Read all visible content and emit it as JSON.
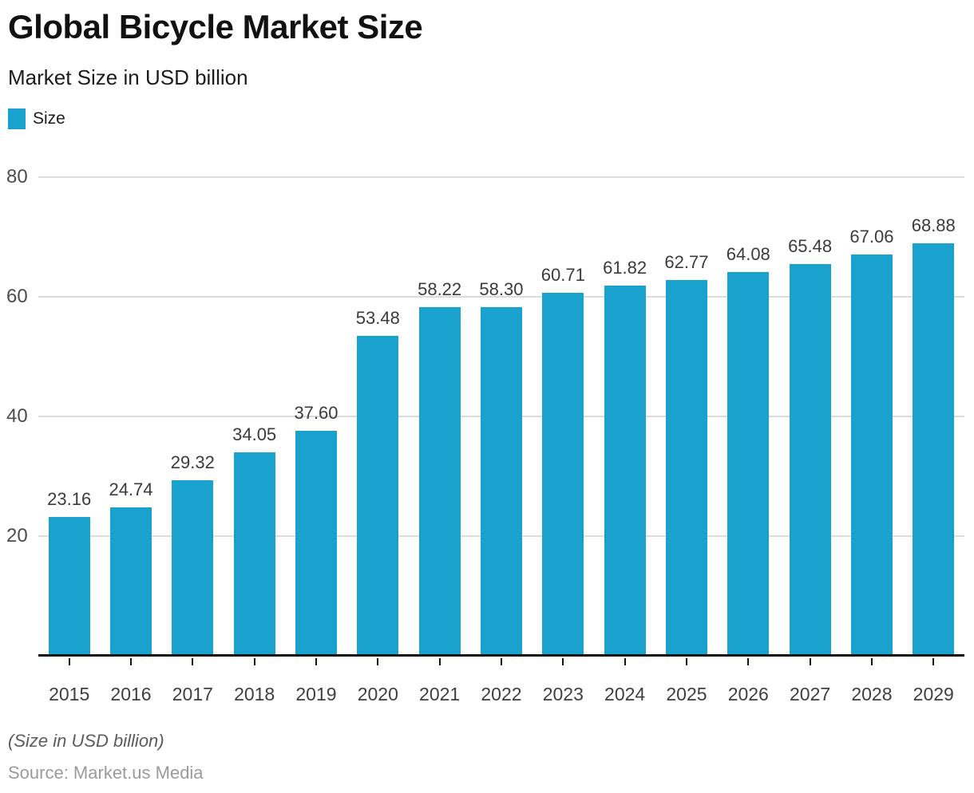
{
  "header": {
    "title": "Global Bicycle Market Size",
    "subtitle": "Market Size in USD billion"
  },
  "legend": {
    "label": "Size",
    "swatch_color": "#1AA2CE"
  },
  "footer": {
    "note": "(Size in USD billion)",
    "source": "Source: Market.us Media"
  },
  "colors": {
    "bar": "#1AA2CE",
    "gridline": "#dbdbdb",
    "axis": "#151515",
    "value_label": "#3b3b3b",
    "tick_label": "#4d4d4d"
  },
  "chart_data": {
    "type": "bar",
    "title": "Global Bicycle Market Size",
    "subtitle": "Market Size in USD billion",
    "xlabel": "",
    "ylabel": "Market Size in USD billion",
    "categories": [
      "2015",
      "2016",
      "2017",
      "2018",
      "2019",
      "2020",
      "2021",
      "2022",
      "2023",
      "2024",
      "2025",
      "2026",
      "2027",
      "2028",
      "2029"
    ],
    "values": [
      23.16,
      24.74,
      29.32,
      34.05,
      37.6,
      53.48,
      58.22,
      58.3,
      60.71,
      61.82,
      62.77,
      64.08,
      65.48,
      67.06,
      68.88
    ],
    "value_labels": [
      "23.16",
      "24.74",
      "29.32",
      "34.05",
      "37.60",
      "53.48",
      "58.22",
      "58.30",
      "60.71",
      "61.82",
      "62.77",
      "64.08",
      "65.48",
      "67.06",
      "68.88"
    ],
    "series_name": "Size",
    "ylim": [
      0,
      80
    ],
    "yticks": [
      20,
      40,
      60,
      80
    ],
    "ytick_labels": [
      "20",
      "40",
      "60",
      "80"
    ],
    "grid": true,
    "legend_position": "top-left"
  }
}
